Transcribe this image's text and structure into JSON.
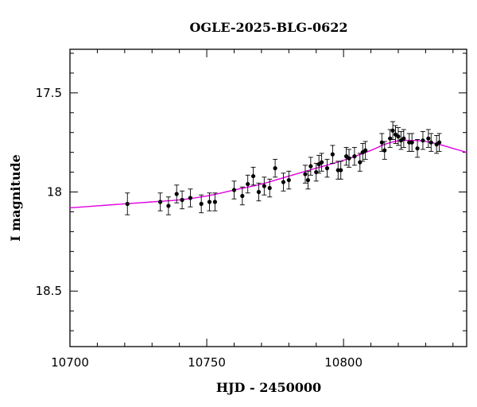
{
  "chart_data": {
    "type": "scatter",
    "title": "OGLE-2025-BLG-0622",
    "xlabel": "HJD - 2450000",
    "ylabel": "I magnitude",
    "xlim": [
      10700,
      10845
    ],
    "ylim": [
      18.78,
      17.28
    ],
    "y_inverted": true,
    "x_ticks": [
      10700,
      10750,
      10800
    ],
    "x_tick_labels": [
      "10700",
      "10750",
      "10800"
    ],
    "y_ticks": [
      17.5,
      18,
      18.5
    ],
    "y_tick_labels": [
      "17.5",
      "18",
      "18.5"
    ],
    "grid": false,
    "legend": "none",
    "colors": {
      "points": "#000000",
      "model": "#e000e0"
    },
    "series": [
      {
        "kind": "points",
        "x": [
          10721,
          10733,
          10736,
          10739,
          10741,
          10744,
          10748,
          10751,
          10753,
          10760,
          10763,
          10765,
          10767,
          10769,
          10771,
          10773,
          10775,
          10778,
          10780,
          10786,
          10787,
          10788,
          10790,
          10791,
          10792,
          10794,
          10796,
          10798,
          10799,
          10801,
          10802,
          10804,
          10806,
          10807,
          10808,
          10814,
          10815,
          10817,
          10818,
          10819,
          10820,
          10821,
          10822,
          10824,
          10825,
          10827,
          10829,
          10831,
          10832,
          10834,
          10835
        ],
        "y": [
          18.06,
          18.05,
          18.07,
          18.01,
          18.04,
          18.03,
          18.06,
          18.05,
          18.05,
          17.99,
          18.02,
          17.96,
          17.92,
          18.0,
          17.97,
          17.98,
          17.88,
          17.95,
          17.94,
          17.91,
          17.94,
          17.87,
          17.9,
          17.86,
          17.85,
          17.88,
          17.81,
          17.89,
          17.89,
          17.82,
          17.83,
          17.82,
          17.85,
          17.8,
          17.79,
          17.75,
          17.79,
          17.73,
          17.69,
          17.71,
          17.72,
          17.74,
          17.73,
          17.75,
          17.75,
          17.78,
          17.74,
          17.73,
          17.75,
          17.76,
          17.75
        ],
        "yerr": [
          0.055,
          0.045,
          0.045,
          0.045,
          0.045,
          0.045,
          0.045,
          0.045,
          0.045,
          0.045,
          0.045,
          0.045,
          0.045,
          0.045,
          0.045,
          0.045,
          0.045,
          0.045,
          0.045,
          0.045,
          0.045,
          0.045,
          0.045,
          0.045,
          0.045,
          0.045,
          0.045,
          0.045,
          0.045,
          0.045,
          0.045,
          0.045,
          0.045,
          0.045,
          0.045,
          0.045,
          0.045,
          0.045,
          0.045,
          0.045,
          0.045,
          0.045,
          0.045,
          0.045,
          0.045,
          0.045,
          0.045,
          0.045,
          0.045,
          0.045,
          0.045
        ]
      },
      {
        "kind": "model-line",
        "x": [
          10700,
          10710,
          10720,
          10730,
          10740,
          10750,
          10760,
          10770,
          10780,
          10790,
          10800,
          10810,
          10815,
          10820,
          10825,
          10830,
          10835,
          10840,
          10845
        ],
        "y": [
          18.08,
          18.07,
          18.06,
          18.05,
          18.04,
          18.02,
          17.99,
          17.96,
          17.92,
          17.88,
          17.84,
          17.79,
          17.76,
          17.742,
          17.74,
          17.745,
          17.76,
          17.78,
          17.8
        ]
      }
    ]
  }
}
